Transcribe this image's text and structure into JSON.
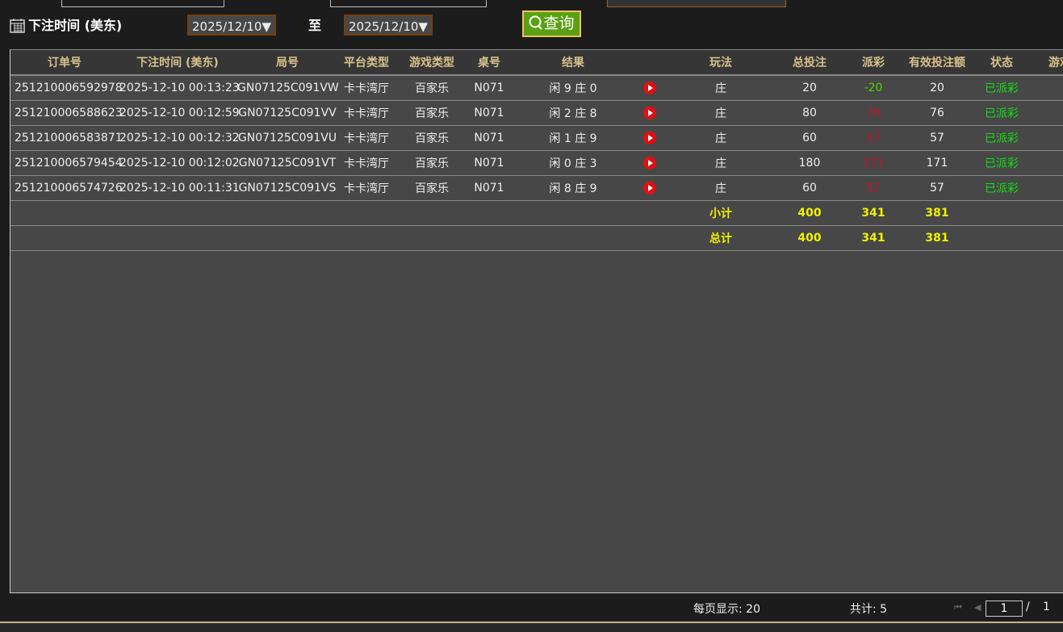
{
  "filter": {
    "label": "下注时间 (美东)",
    "start_date": "2025/12/10▼",
    "to_label": "至",
    "end_date": "2025/12/10▼",
    "query_button": "查询"
  },
  "table": {
    "headers": [
      "订单号",
      "下注时间 (美东)",
      "局号",
      "平台类型",
      "游戏类型",
      "桌号",
      "结果",
      "",
      "玩法",
      "总投注",
      "派彩",
      "有效投注额",
      "状态",
      "游戏"
    ],
    "rows": [
      {
        "order": "251210006592978",
        "time": "2025-12-10 00:13:23",
        "round": "GN07125C091VW",
        "platform": "卡卡湾厅",
        "game": "百家乐",
        "table": "N071",
        "result": "闲 9 庄 0",
        "play": "庄",
        "bet": "20",
        "payout": "-20",
        "payout_type": "neg",
        "valid": "20",
        "status": "已派彩"
      },
      {
        "order": "251210006588623",
        "time": "2025-12-10 00:12:59",
        "round": "GN07125C091VV",
        "platform": "卡卡湾厅",
        "game": "百家乐",
        "table": "N071",
        "result": "闲 2 庄 8",
        "play": "庄",
        "bet": "80",
        "payout": "76",
        "payout_type": "pos",
        "valid": "76",
        "status": "已派彩"
      },
      {
        "order": "251210006583871",
        "time": "2025-12-10 00:12:32",
        "round": "GN07125C091VU",
        "platform": "卡卡湾厅",
        "game": "百家乐",
        "table": "N071",
        "result": "闲 1 庄 9",
        "play": "庄",
        "bet": "60",
        "payout": "57",
        "payout_type": "pos",
        "valid": "57",
        "status": "已派彩"
      },
      {
        "order": "251210006579454",
        "time": "2025-12-10 00:12:02",
        "round": "GN07125C091VT",
        "platform": "卡卡湾厅",
        "game": "百家乐",
        "table": "N071",
        "result": "闲 0 庄 3",
        "play": "庄",
        "bet": "180",
        "payout": "171",
        "payout_type": "pos",
        "valid": "171",
        "status": "已派彩"
      },
      {
        "order": "251210006574726",
        "time": "2025-12-10 00:11:31",
        "round": "GN07125C091VS",
        "platform": "卡卡湾厅",
        "game": "百家乐",
        "table": "N071",
        "result": "闲 8 庄 9",
        "play": "庄",
        "bet": "60",
        "payout": "57",
        "payout_type": "pos",
        "valid": "57",
        "status": "已派彩"
      }
    ],
    "subtotal": {
      "label": "小计",
      "bet": "400",
      "payout": "341",
      "valid": "381"
    },
    "total": {
      "label": "总计",
      "bet": "400",
      "payout": "341",
      "valid": "381"
    }
  },
  "footer": {
    "per_page": "每页显示: 20",
    "count": "共计: 5",
    "page": "1",
    "separator": "/",
    "total_pages": "1"
  },
  "colors": {
    "header_text": "#d8c08a",
    "positive": "#c8102e",
    "negative": "#55d000",
    "status": "#10e010",
    "total": "#f0f000",
    "query_button": "#5aa014"
  }
}
